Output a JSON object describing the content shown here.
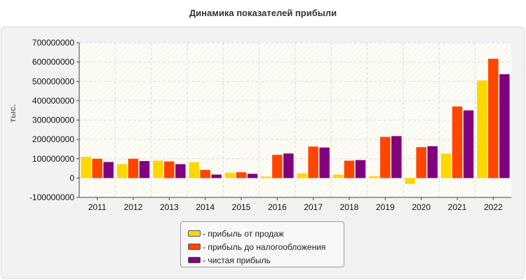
{
  "chart_data": {
    "type": "bar",
    "title": "Динамика показателей прибыли",
    "ylabel": "тыс.",
    "xlabel": "",
    "ylim": [
      -100000000,
      700000000
    ],
    "yticks": [
      700000000,
      600000000,
      500000000,
      400000000,
      300000000,
      200000000,
      100000000,
      0,
      -100000000
    ],
    "ytick_labels": [
      "700000000",
      "600000000",
      "500000000",
      "400000000",
      "300000000",
      "200000000",
      "100000000",
      "0",
      "-100000000"
    ],
    "grid": true,
    "legend_position": "bottom",
    "categories": [
      "2011",
      "2012",
      "2013",
      "2014",
      "2015",
      "2016",
      "2017",
      "2018",
      "2019",
      "2020",
      "2021",
      "2022"
    ],
    "series": [
      {
        "name": "- прибыль от продаж",
        "color": "#ffd700",
        "values": [
          110000000,
          72000000,
          90000000,
          82000000,
          28000000,
          8000000,
          24000000,
          18000000,
          10000000,
          -30000000,
          127000000,
          505000000
        ]
      },
      {
        "name": "- прибыль до налогообложения",
        "color": "#ff4500",
        "values": [
          100000000,
          100000000,
          86000000,
          42000000,
          30000000,
          120000000,
          163000000,
          90000000,
          213000000,
          160000000,
          370000000,
          617000000
        ]
      },
      {
        "name": "- чистая прибыль",
        "color": "#800080",
        "values": [
          83000000,
          88000000,
          72000000,
          18000000,
          22000000,
          127000000,
          158000000,
          93000000,
          217000000,
          165000000,
          350000000,
          537000000
        ]
      }
    ]
  }
}
